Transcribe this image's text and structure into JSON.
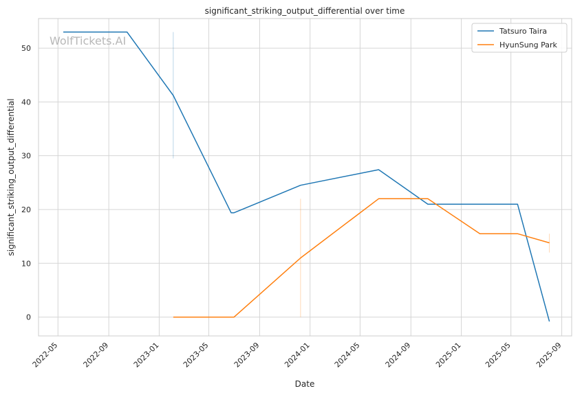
{
  "chart_data": {
    "type": "line",
    "title": "significant_striking_output_differential over time",
    "xlabel": "Date",
    "ylabel": "significant_striking_output_differential",
    "watermark": "WolfTickets.AI",
    "xlim": [
      "2022-03-15",
      "2025-09-25"
    ],
    "ylim": [
      -3.5,
      55.5
    ],
    "x_ticks": [
      "2022-05",
      "2022-09",
      "2023-01",
      "2023-05",
      "2023-09",
      "2024-01",
      "2024-05",
      "2024-09",
      "2025-01",
      "2025-05",
      "2025-09"
    ],
    "y_ticks": [
      0,
      10,
      20,
      30,
      40,
      50
    ],
    "grid": true,
    "legend_position": "top-right",
    "series": [
      {
        "name": "Tatsuro Taira",
        "color": "#1f77b4",
        "x": [
          "2022-05-14",
          "2022-10-15",
          "2023-02-04",
          "2023-06-24",
          "2023-07-01",
          "2023-12-09",
          "2024-06-15",
          "2024-10-12",
          "2025-05-17",
          "2025-08-02"
        ],
        "y": [
          53.0,
          53.0,
          41.2,
          19.4,
          19.4,
          24.5,
          27.4,
          21.0,
          21.0,
          -0.8
        ]
      },
      {
        "name": "HyunSung Park",
        "color": "#ff7f0e",
        "x": [
          "2023-02-04",
          "2023-07-01",
          "2023-12-09",
          "2024-06-15",
          "2024-10-12",
          "2025-02-15",
          "2025-05-17",
          "2025-08-02"
        ],
        "y": [
          0.0,
          0.0,
          11.0,
          22.0,
          22.0,
          15.5,
          15.5,
          13.8
        ]
      }
    ],
    "error_bars": [
      {
        "series": "Tatsuro Taira",
        "x": "2023-02-04",
        "low": 29.5,
        "high": 53.0
      },
      {
        "series": "HyunSung Park",
        "x": "2023-12-09",
        "low": 0.0,
        "high": 22.0
      },
      {
        "series": "HyunSung Park",
        "x": "2025-08-02",
        "low": 12.0,
        "high": 15.5
      }
    ]
  }
}
